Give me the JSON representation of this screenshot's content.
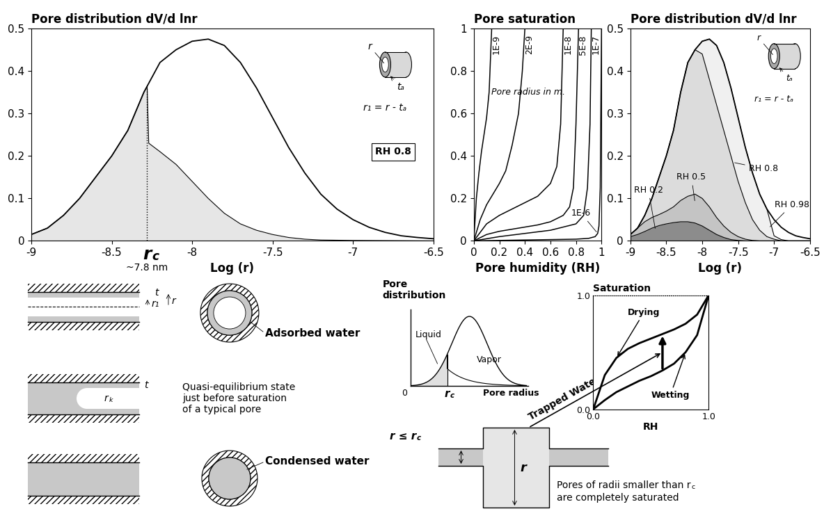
{
  "chart_data": [
    {
      "type": "area",
      "title": "Pore distribution dV/d lnr",
      "x_label": "Log (r)",
      "xlim": [
        -9,
        -6.5
      ],
      "xticks": [
        -9,
        -8.5,
        -8,
        -7.5,
        -7,
        -6.5
      ],
      "ylim": [
        0,
        0.5
      ],
      "yticks": [
        0,
        0.1,
        0.2,
        0.3,
        0.4,
        0.5
      ],
      "series": [
        {
          "type": "area",
          "color": "#e6e6e6",
          "x": [
            -9.0,
            -8.9,
            -8.8,
            -8.7,
            -8.6,
            -8.5,
            -8.4,
            -8.3,
            -8.28,
            -8.27,
            -8.2,
            -8.1,
            -8.0,
            -7.9,
            -7.8,
            -7.7,
            -7.6,
            -7.5,
            -7.4,
            -7.3,
            -7.2,
            -7.0,
            -6.5
          ],
          "values": [
            0.015,
            0.03,
            0.06,
            0.1,
            0.15,
            0.2,
            0.26,
            0.35,
            0.364,
            0.23,
            0.21,
            0.18,
            0.14,
            0.1,
            0.065,
            0.04,
            0.025,
            0.015,
            0.008,
            0.004,
            0.002,
            0.001,
            0
          ]
        },
        {
          "type": "line",
          "color": "#000000",
          "x": [
            -9.0,
            -8.9,
            -8.8,
            -8.7,
            -8.6,
            -8.5,
            -8.4,
            -8.3,
            -8.2,
            -8.1,
            -8.0,
            -7.9,
            -7.8,
            -7.7,
            -7.6,
            -7.5,
            -7.4,
            -7.3,
            -7.2,
            -7.1,
            -7.0,
            -6.9,
            -6.8,
            -6.7,
            -6.6,
            -6.5
          ],
          "values": [
            0.015,
            0.03,
            0.06,
            0.1,
            0.15,
            0.2,
            0.26,
            0.35,
            0.42,
            0.45,
            0.47,
            0.475,
            0.46,
            0.42,
            0.36,
            0.29,
            0.22,
            0.16,
            0.11,
            0.075,
            0.05,
            0.032,
            0.02,
            0.012,
            0.008,
            0.005
          ]
        }
      ],
      "rc": {
        "x": -8.28,
        "y": 0.364,
        "base": "r",
        "sub": "c",
        "note": "~7.8 nm",
        "line_style": "dotted"
      },
      "box_label": "RH 0.8",
      "icon": {
        "r": "r",
        "t": "tₐ",
        "formula": "r₁ = r - tₐ"
      }
    },
    {
      "type": "line",
      "title": "Pore saturation",
      "x_label": "Pore humidity (RH)",
      "xlim": [
        0,
        1
      ],
      "xticks": [
        0,
        0.2,
        0.4,
        0.6,
        0.8,
        1
      ],
      "ylim": [
        0,
        1
      ],
      "yticks": [
        0,
        0.2,
        0.4,
        0.6,
        0.8,
        1
      ],
      "color": "#000000",
      "annotation": "Pore radius in m.",
      "series": [
        {
          "name": "1E-9",
          "x": [
            0,
            0.02,
            0.04,
            0.06,
            0.08,
            0.1,
            0.12,
            0.13,
            0.14
          ],
          "values": [
            0,
            0.2,
            0.32,
            0.42,
            0.5,
            0.58,
            0.7,
            0.85,
            1
          ]
        },
        {
          "name": "2E-9",
          "x": [
            0,
            0.05,
            0.1,
            0.15,
            0.2,
            0.25,
            0.3,
            0.35,
            0.38,
            0.4
          ],
          "values": [
            0,
            0.1,
            0.17,
            0.22,
            0.27,
            0.33,
            0.45,
            0.6,
            0.8,
            1
          ]
        },
        {
          "name": "1E-8",
          "x": [
            0,
            0.1,
            0.2,
            0.3,
            0.4,
            0.5,
            0.6,
            0.65,
            0.68,
            0.7
          ],
          "values": [
            0,
            0.08,
            0.12,
            0.15,
            0.18,
            0.21,
            0.27,
            0.35,
            0.55,
            1
          ]
        },
        {
          "name": "5E-8",
          "x": [
            0,
            0.1,
            0.2,
            0.3,
            0.4,
            0.5,
            0.6,
            0.7,
            0.75,
            0.78,
            0.8,
            0.82
          ],
          "values": [
            0,
            0.03,
            0.045,
            0.055,
            0.065,
            0.075,
            0.09,
            0.12,
            0.16,
            0.25,
            0.55,
            1
          ]
        },
        {
          "name": "1E-7",
          "x": [
            0,
            0.2,
            0.4,
            0.6,
            0.8,
            0.86,
            0.89,
            0.91,
            0.92
          ],
          "values": [
            0,
            0.02,
            0.035,
            0.05,
            0.08,
            0.12,
            0.25,
            0.55,
            1
          ]
        },
        {
          "name": "1E-6",
          "x": [
            0,
            0.4,
            0.8,
            0.9,
            0.95,
            0.97,
            0.98,
            0.99,
            1
          ],
          "values": [
            0,
            0.004,
            0.008,
            0.012,
            0.02,
            0.035,
            0.07,
            0.25,
            1
          ]
        }
      ]
    },
    {
      "type": "area",
      "title": "Pore distribution dV/d lnr",
      "x_label": "Log (r)",
      "xlim": [
        -9,
        -6.5
      ],
      "xticks": [
        -9,
        -8.5,
        -8,
        -7.5,
        -7,
        -6.5
      ],
      "ylim": [
        0,
        0.5
      ],
      "yticks": [
        0,
        0.1,
        0.2,
        0.3,
        0.4,
        0.5
      ],
      "series": [
        {
          "name": "RH 0.98",
          "type": "area",
          "color": "#f0f0f0",
          "x": [
            -9.0,
            -8.9,
            -8.8,
            -8.7,
            -8.6,
            -8.5,
            -8.4,
            -8.3,
            -8.2,
            -8.1,
            -8.0,
            -7.9,
            -7.8,
            -7.7,
            -7.6,
            -7.5,
            -7.4,
            -7.3,
            -7.2,
            -7.1,
            -7.0,
            -6.9,
            -6.8,
            -6.7,
            -6.6,
            -6.5
          ],
          "values": [
            0.015,
            0.03,
            0.06,
            0.1,
            0.15,
            0.2,
            0.26,
            0.35,
            0.42,
            0.45,
            0.47,
            0.475,
            0.46,
            0.42,
            0.36,
            0.29,
            0.22,
            0.16,
            0.11,
            0.075,
            0.012,
            0.003,
            0,
            0,
            0,
            0
          ]
        },
        {
          "name": "RH 0.8",
          "type": "area",
          "color": "#dcdcdc",
          "x": [
            -9.0,
            -8.9,
            -8.8,
            -8.7,
            -8.6,
            -8.5,
            -8.4,
            -8.3,
            -8.2,
            -8.1,
            -8.0,
            -7.9,
            -7.8,
            -7.7,
            -7.6,
            -7.5,
            -7.4,
            -7.3,
            -7.2,
            -7.1,
            -7.0,
            -6.9,
            -6.8,
            -6.7,
            -6.6,
            -6.5
          ],
          "values": [
            0.015,
            0.03,
            0.06,
            0.1,
            0.15,
            0.2,
            0.26,
            0.35,
            0.42,
            0.45,
            0.44,
            0.38,
            0.32,
            0.26,
            0.2,
            0.14,
            0.09,
            0.05,
            0.025,
            0.01,
            0.004,
            0,
            0,
            0,
            0,
            0
          ]
        },
        {
          "name": "RH 0.5",
          "type": "area",
          "color": "#c4c4c4",
          "x": [
            -9.0,
            -8.9,
            -8.8,
            -8.7,
            -8.6,
            -8.5,
            -8.4,
            -8.3,
            -8.2,
            -8.1,
            -8.0,
            -7.9,
            -7.8,
            -7.7,
            -7.6,
            -7.5,
            -7.4,
            -7.3,
            -7.2,
            -7.1,
            -7.0,
            -6.9,
            -6.8,
            -6.7,
            -6.6,
            -6.5
          ],
          "values": [
            0.015,
            0.03,
            0.045,
            0.055,
            0.062,
            0.07,
            0.08,
            0.095,
            0.105,
            0.11,
            0.1,
            0.08,
            0.055,
            0.035,
            0.02,
            0.01,
            0.004,
            0.001,
            0,
            0,
            0,
            0,
            0,
            0,
            0,
            0
          ]
        },
        {
          "name": "RH 0.2",
          "type": "area",
          "color": "#8c8c8c",
          "x": [
            -9.0,
            -8.9,
            -8.8,
            -8.7,
            -8.6,
            -8.5,
            -8.4,
            -8.3,
            -8.2,
            -8.1,
            -8.0,
            -7.9,
            -7.8,
            -7.7,
            -7.6,
            -7.5,
            -7.4,
            -7.3,
            -7.2,
            -7.1,
            -7.0,
            -6.9,
            -6.8,
            -6.7,
            -6.6,
            -6.5
          ],
          "values": [
            0.01,
            0.015,
            0.022,
            0.03,
            0.036,
            0.04,
            0.043,
            0.045,
            0.045,
            0.042,
            0.035,
            0.025,
            0.015,
            0.008,
            0.003,
            0.001,
            0,
            0,
            0,
            0,
            0,
            0,
            0,
            0,
            0,
            0
          ]
        },
        {
          "type": "line",
          "color": "#000000",
          "x": [
            -9.0,
            -8.9,
            -8.8,
            -8.7,
            -8.6,
            -8.5,
            -8.4,
            -8.3,
            -8.2,
            -8.1,
            -8.0,
            -7.9,
            -7.8,
            -7.7,
            -7.6,
            -7.5,
            -7.4,
            -7.3,
            -7.2,
            -7.1,
            -7.0,
            -6.9,
            -6.8,
            -6.7,
            -6.6,
            -6.5
          ],
          "values": [
            0.015,
            0.03,
            0.06,
            0.1,
            0.15,
            0.2,
            0.26,
            0.35,
            0.42,
            0.45,
            0.47,
            0.475,
            0.46,
            0.42,
            0.36,
            0.29,
            0.22,
            0.16,
            0.11,
            0.075,
            0.05,
            0.032,
            0.02,
            0.012,
            0.008,
            0.005
          ]
        }
      ],
      "icon": {
        "r": "r",
        "t": "tₐ",
        "formula": "r₁ = r - tₐ"
      }
    }
  ],
  "diagram_left": {
    "t_labels": [
      "t",
      "t"
    ],
    "r1": "r₁",
    "r": "r",
    "adsorbed": "Adsorbed water",
    "rk": {
      "base": "r",
      "sub": "k"
    },
    "quasi": "Quasi-equilibrium state\njust before saturation\nof a typical pore",
    "condensed": "Condensed water"
  },
  "diagram_right": {
    "distribution": {
      "title": "Pore\ndistribution",
      "liquid": "Liquid",
      "vapor": "Vapor",
      "rc": {
        "base": "r",
        "sub": "c"
      },
      "x_label": "Pore radius",
      "origin": "0"
    },
    "saturation": {
      "title": "Saturation",
      "x_label": "RH",
      "xlim": [
        0,
        1
      ],
      "ylim": [
        0,
        1
      ],
      "xticks": [
        {
          "value": 0,
          "label": "0.0"
        },
        {
          "value": 1,
          "label": "1.0"
        }
      ],
      "yticks": [
        {
          "value": 0,
          "label": "0.0"
        },
        {
          "value": 1,
          "label": "1.0"
        }
      ],
      "x": [
        0,
        0.1,
        0.2,
        0.3,
        0.4,
        0.5,
        0.6,
        0.7,
        0.8,
        0.9,
        1
      ],
      "drying": [
        0,
        0.3,
        0.45,
        0.53,
        0.58,
        0.62,
        0.66,
        0.7,
        0.75,
        0.83,
        1
      ],
      "wetting": [
        0,
        0.08,
        0.15,
        0.2,
        0.25,
        0.29,
        0.34,
        0.4,
        0.5,
        0.65,
        1
      ],
      "drying_label": "Drying",
      "wetting_label": "Wetting"
    },
    "trapped": "Trapped Water",
    "pore": {
      "condition": {
        "base": "r ≤ r",
        "sub": "c"
      },
      "radius": "r",
      "note": {
        "base": "Pores of radii smaller than r",
        "sub": "c",
        "line2": "are completely saturated"
      }
    }
  }
}
